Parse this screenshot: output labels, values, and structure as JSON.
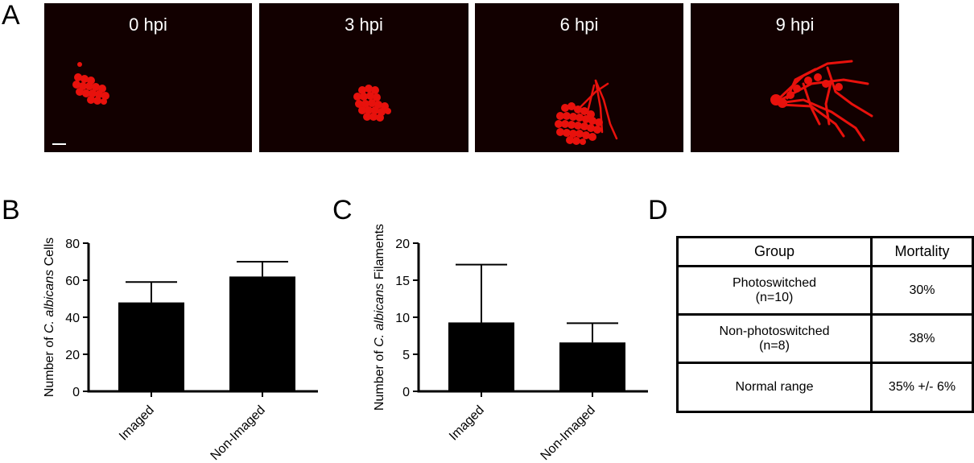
{
  "panels": {
    "a": {
      "letter": "A"
    },
    "b": {
      "letter": "B"
    },
    "c": {
      "letter": "C"
    },
    "d": {
      "letter": "D"
    }
  },
  "micrographs": [
    {
      "label": "0 hpi",
      "stage": "yeast cluster"
    },
    {
      "label": "3 hpi",
      "stage": "yeast cluster"
    },
    {
      "label": "6 hpi",
      "stage": "early filaments"
    },
    {
      "label": "9 hpi",
      "stage": "extensive filaments"
    }
  ],
  "colors": {
    "fungus": "#e8110c",
    "micrograph_bg": "#120000",
    "bar": "#000000"
  },
  "chart_data": [
    {
      "type": "bar",
      "ylabel": "Number of C. albicans Cells",
      "ylabel_parts": [
        "Number of ",
        "C. albicans",
        " Cells"
      ],
      "categories": [
        "Imaged",
        "Non-Imaged"
      ],
      "values": [
        48,
        62
      ],
      "errors": [
        11,
        8
      ],
      "ylim": [
        0,
        80
      ],
      "yticks": [
        0,
        20,
        40,
        60,
        80
      ]
    },
    {
      "type": "bar",
      "ylabel": "Number of C. albicans Filaments",
      "ylabel_parts": [
        "Number of ",
        "C. albicans",
        " Filaments"
      ],
      "categories": [
        "Imaged",
        "Non-Imaged"
      ],
      "values": [
        9.3,
        6.6
      ],
      "errors": [
        7.8,
        2.6
      ],
      "ylim": [
        0,
        20
      ],
      "yticks": [
        0,
        5,
        10,
        15,
        20
      ]
    }
  ],
  "table": {
    "headers": [
      "Group",
      "Mortality"
    ],
    "rows": [
      {
        "group": [
          "Photoswitched",
          "(n=10)"
        ],
        "mortality": "30%"
      },
      {
        "group": [
          "Non-photoswitched",
          "(n=8)"
        ],
        "mortality": "38%"
      },
      {
        "group": [
          "Normal range"
        ],
        "mortality": "35% +/- 6%"
      }
    ]
  }
}
